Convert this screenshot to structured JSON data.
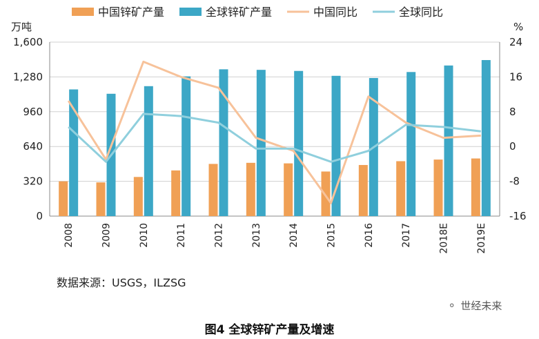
{
  "chart_data": {
    "type": "bar",
    "categories": [
      "2008",
      "2009",
      "2010",
      "2011",
      "2012",
      "2013",
      "2014",
      "2015",
      "2016",
      "2017",
      "2018E",
      "2019E"
    ],
    "series": [
      {
        "name": "中国锌矿产量",
        "kind": "bar",
        "axis": "left",
        "color": "#f0a055",
        "values": [
          320,
          310,
          360,
          420,
          480,
          490,
          485,
          410,
          470,
          505,
          520,
          530
        ]
      },
      {
        "name": "全球锌矿产量",
        "kind": "bar",
        "axis": "left",
        "color": "#3ca7c6",
        "values": [
          1165,
          1125,
          1195,
          1285,
          1350,
          1345,
          1335,
          1290,
          1270,
          1325,
          1385,
          1435
        ]
      },
      {
        "name": "中国同比",
        "kind": "line",
        "axis": "right",
        "color": "#f7c29a",
        "values": [
          10.5,
          -3,
          19.5,
          16,
          13.5,
          2,
          -1,
          -13,
          11.5,
          5.5,
          2,
          2.5
        ]
      },
      {
        "name": "全球同比",
        "kind": "line",
        "axis": "right",
        "color": "#8fcfdd",
        "values": [
          4.5,
          -3.5,
          7.5,
          7,
          5.5,
          -0.5,
          -0.5,
          -3.5,
          -1,
          5,
          4.5,
          3.5
        ]
      }
    ],
    "left_axis": {
      "unit": "万吨",
      "min": 0,
      "max": 1600,
      "ticks": [
        0,
        320,
        640,
        960,
        1280,
        1600
      ],
      "tick_labels": [
        "0",
        "320",
        "640",
        "960",
        "1,280",
        "1,600"
      ]
    },
    "right_axis": {
      "unit": "%",
      "min": -16,
      "max": 24,
      "ticks": [
        -16,
        -8,
        0,
        8,
        16,
        24
      ],
      "tick_labels": [
        "-16",
        "-8",
        "0",
        "8",
        "16",
        "24"
      ]
    },
    "grid": true,
    "legend_position": "top"
  },
  "source_text": "数据来源：USGS，ILZSG",
  "watermark_text": "世经未来",
  "caption": "图4  全球锌矿产量及增速"
}
